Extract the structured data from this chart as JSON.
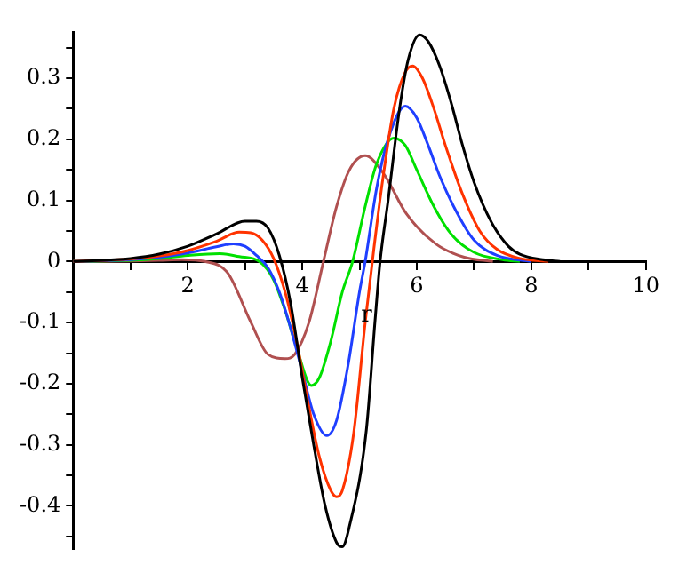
{
  "chart_data": {
    "type": "line",
    "xlabel": "r",
    "xlim": [
      0,
      10
    ],
    "xticks": [
      {
        "value": 1,
        "label": null
      },
      2,
      {
        "value": 3,
        "label": null
      },
      4,
      {
        "value": 5,
        "label": null
      },
      6,
      {
        "value": 7,
        "label": null
      },
      8,
      {
        "value": 9,
        "label": null
      },
      10
    ],
    "ylim": [
      -0.47,
      0.375
    ],
    "yticks": [
      {
        "value": -0.45,
        "label": null
      },
      -0.4,
      {
        "value": -0.35,
        "label": null
      },
      -0.3,
      {
        "value": -0.25,
        "label": null
      },
      -0.2,
      {
        "value": -0.15,
        "label": null
      },
      -0.1,
      {
        "value": -0.05,
        "label": null
      },
      0,
      {
        "value": 0.05,
        "label": null
      },
      0.1,
      {
        "value": 0.15,
        "label": null
      },
      0.2,
      {
        "value": 0.25,
        "label": null
      },
      0.3,
      {
        "value": 0.35,
        "label": null
      }
    ],
    "grid": false,
    "legend": false,
    "marker": "none",
    "line_style": "solid",
    "series": [
      {
        "color": "#000000",
        "x": [
          0,
          1,
          1.5,
          2,
          2.5,
          3,
          3.2,
          3.4,
          3.6,
          3.8,
          4.0,
          4.2,
          4.4,
          4.6,
          4.7,
          4.82,
          5.12,
          5.27,
          5.36,
          5.5,
          5.7,
          5.85,
          6.05,
          6.2,
          6.4,
          6.6,
          6.8,
          7.0,
          7.3,
          7.6,
          7.8,
          8.2,
          8.5
        ],
        "values": [
          0,
          0.005,
          0.012,
          0.025,
          0.045,
          0.066,
          0.066,
          0.055,
          0.01,
          -0.07,
          -0.19,
          -0.3,
          -0.4,
          -0.46,
          -0.467,
          -0.435,
          -0.276,
          -0.099,
          0,
          0.1,
          0.25,
          0.33,
          0.371,
          0.36,
          0.32,
          0.26,
          0.19,
          0.13,
          0.065,
          0.025,
          0.012,
          0.003,
          0
        ]
      },
      {
        "color": "#ff3300",
        "x": [
          0,
          1,
          1.5,
          2,
          2.5,
          2.9,
          3.1,
          3.3,
          3.5,
          3.7,
          3.9,
          4.1,
          4.3,
          4.5,
          4.6,
          4.7,
          4.9,
          5.1,
          5.25,
          5.4,
          5.6,
          5.8,
          5.93,
          6.1,
          6.3,
          6.5,
          6.8,
          7.1,
          7.4,
          7.8,
          8.3
        ],
        "values": [
          0,
          0.004,
          0.009,
          0.018,
          0.033,
          0.048,
          0.047,
          0.035,
          0.005,
          -0.05,
          -0.13,
          -0.23,
          -0.32,
          -0.375,
          -0.385,
          -0.375,
          -0.28,
          -0.1,
          0.02,
          0.13,
          0.25,
          0.31,
          0.32,
          0.3,
          0.25,
          0.19,
          0.11,
          0.05,
          0.02,
          0.005,
          0
        ]
      },
      {
        "color": "#1f3fff",
        "x": [
          0,
          1,
          1.5,
          2,
          2.5,
          2.8,
          3.0,
          3.2,
          3.4,
          3.6,
          3.8,
          4.0,
          4.2,
          4.43,
          4.6,
          4.8,
          5.0,
          5.1,
          5.3,
          5.5,
          5.8,
          6.0,
          6.2,
          6.4,
          6.7,
          7.0,
          7.4,
          8.0
        ],
        "values": [
          0,
          0.003,
          0.007,
          0.014,
          0.024,
          0.029,
          0.025,
          0.01,
          -0.01,
          -0.05,
          -0.11,
          -0.18,
          -0.25,
          -0.285,
          -0.26,
          -0.17,
          -0.05,
          0,
          0.12,
          0.2,
          0.254,
          0.235,
          0.19,
          0.14,
          0.08,
          0.035,
          0.01,
          0
        ]
      },
      {
        "color": "#00e000",
        "x": [
          0,
          1,
          1.5,
          2,
          2.56,
          2.9,
          3.25,
          3.5,
          3.7,
          3.9,
          4.16,
          4.3,
          4.5,
          4.7,
          4.88,
          5.1,
          5.3,
          5.6,
          5.8,
          6.0,
          6.3,
          6.6,
          7.0,
          7.5,
          7.8
        ],
        "values": [
          0,
          0.002,
          0.005,
          0.01,
          0.013,
          0.008,
          0,
          -0.03,
          -0.08,
          -0.14,
          -0.203,
          -0.19,
          -0.13,
          -0.05,
          0,
          0.09,
          0.16,
          0.202,
          0.19,
          0.15,
          0.09,
          0.045,
          0.015,
          0.003,
          0
        ]
      },
      {
        "color": "#b05050",
        "x": [
          0,
          1,
          1.5,
          1.9,
          2.3,
          2.7,
          3.1,
          3.4,
          3.7,
          3.87,
          4.12,
          4.37,
          4.6,
          4.82,
          5.1,
          5.42,
          5.82,
          6.33,
          6.83,
          7.33
        ],
        "values": [
          0,
          0.001,
          0.002,
          0.003,
          0,
          -0.019,
          -0.099,
          -0.152,
          -0.159,
          -0.152,
          -0.099,
          0,
          0.09,
          0.149,
          0.173,
          0.144,
          0.078,
          0.029,
          0.007,
          0
        ]
      }
    ]
  }
}
